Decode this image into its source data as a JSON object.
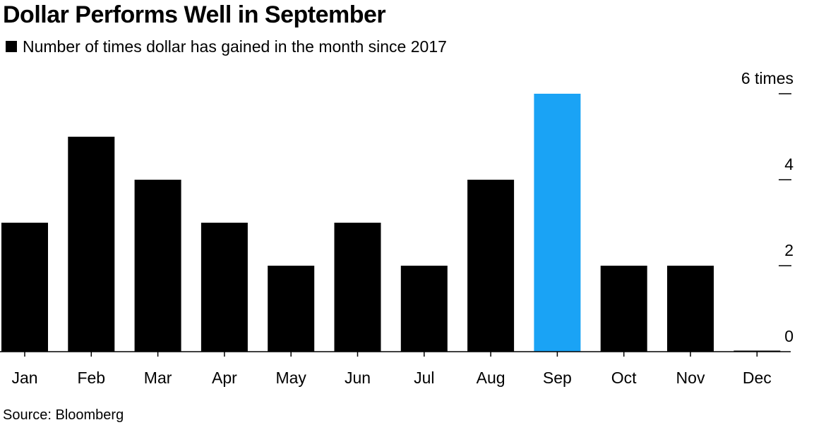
{
  "title": "Dollar Performs Well in September",
  "legend": {
    "label": "Number of times dollar has gained in the month since 2017",
    "swatch_color": "#000000"
  },
  "source": "Source: Bloomberg",
  "colors": {
    "bar": "#000000",
    "highlight": "#1aa3f5"
  },
  "chart_data": {
    "type": "bar",
    "title": "Dollar Performs Well in September",
    "categories": [
      "Jan",
      "Feb",
      "Mar",
      "Apr",
      "May",
      "Jun",
      "Jul",
      "Aug",
      "Sep",
      "Oct",
      "Nov",
      "Dec"
    ],
    "series": [
      {
        "name": "Number of times dollar has gained in the month since 2017",
        "values": [
          3,
          5,
          4,
          3,
          2,
          3,
          2,
          4,
          6,
          2,
          2,
          0
        ]
      }
    ],
    "highlight_category": "Sep",
    "ylim": [
      0,
      6
    ],
    "yticks": [
      0,
      2,
      4,
      6
    ],
    "ytick_labels": [
      "0",
      "2",
      "4",
      "6 times"
    ],
    "y_axis_position": "right",
    "grid": false,
    "legend_position": "top-left"
  }
}
